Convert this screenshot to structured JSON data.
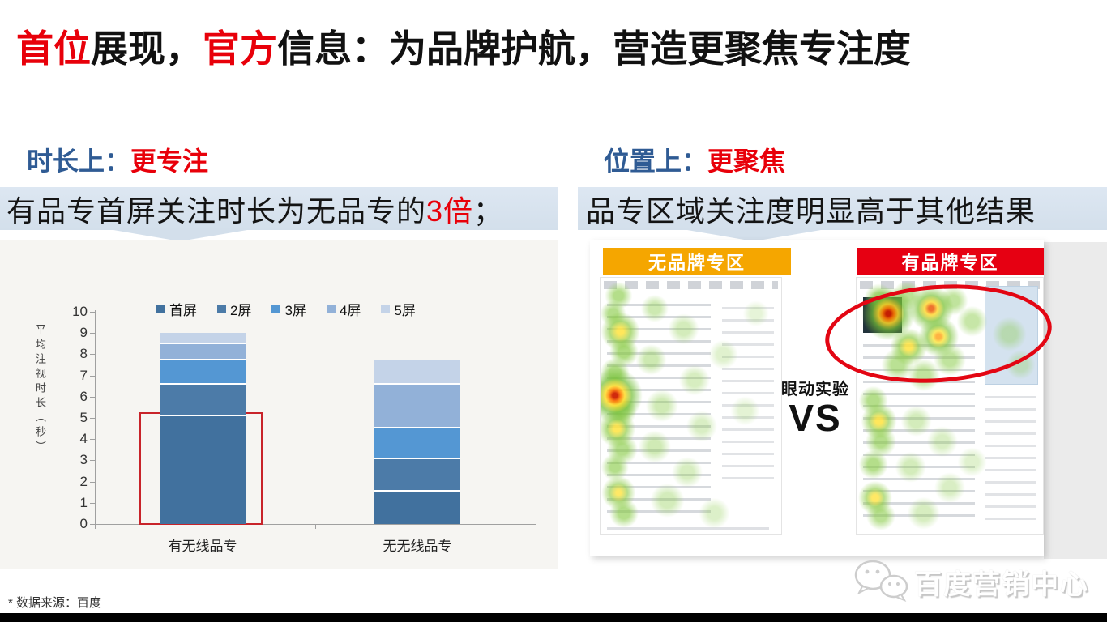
{
  "title": {
    "segments": [
      {
        "text": "首位",
        "red": true
      },
      {
        "text": "展现，",
        "red": false
      },
      {
        "text": "官方",
        "red": true
      },
      {
        "text": "信息：为品牌护航，营造更聚焦专注度",
        "red": false
      }
    ]
  },
  "sections": {
    "left": {
      "header_prefix": "时长上：",
      "header_highlight": "更专注",
      "subtitle_segments": [
        {
          "text": "有品专首屏关注时长为无品专的",
          "red": false
        },
        {
          "text": "3倍",
          "red": true
        },
        {
          "text": "；",
          "red": false
        }
      ]
    },
    "right": {
      "header_prefix": "位置上：",
      "header_highlight": "更聚焦",
      "subtitle_segments": [
        {
          "text": "品专区域关注度明显高于其他结果",
          "red": false
        }
      ]
    }
  },
  "chart_data": {
    "type": "bar",
    "stacked": true,
    "categories": [
      "有无线品专",
      "无无线品专"
    ],
    "series": [
      {
        "name": "首屏",
        "color": "#41719e",
        "values": [
          5.1,
          1.55
        ]
      },
      {
        "name": "2屏",
        "color": "#4c7ba8",
        "values": [
          1.5,
          1.55
        ]
      },
      {
        "name": "3屏",
        "color": "#5497d3",
        "values": [
          1.15,
          1.45
        ]
      },
      {
        "name": "4屏",
        "color": "#92b1d8",
        "values": [
          0.75,
          2.05
        ]
      },
      {
        "name": "5屏",
        "color": "#c4d3e8",
        "values": [
          0.5,
          1.15
        ]
      }
    ],
    "totals": [
      9.0,
      7.75
    ],
    "ylabel": "平均注视时长（秒）",
    "ylim": [
      0,
      10
    ],
    "yticks": [
      0,
      1,
      2,
      3,
      4,
      5,
      6,
      7,
      8,
      9,
      10
    ],
    "legend_position": "top",
    "grid": false,
    "highlight": {
      "category": "有无线品专",
      "series": "首屏",
      "style": "red-box"
    }
  },
  "comparison": {
    "left_label": "无品牌专区",
    "right_label": "有品牌专区",
    "left_label_bg": "#f5a600",
    "right_label_bg": "#e60012",
    "middle_top": "眼动实验",
    "middle_bottom": "VS"
  },
  "footer": {
    "footnote": "* 数据来源：百度",
    "watermark": "百度营销中心"
  },
  "colors": {
    "accent_red": "#e8000a",
    "header_blue": "#2f5b94"
  }
}
